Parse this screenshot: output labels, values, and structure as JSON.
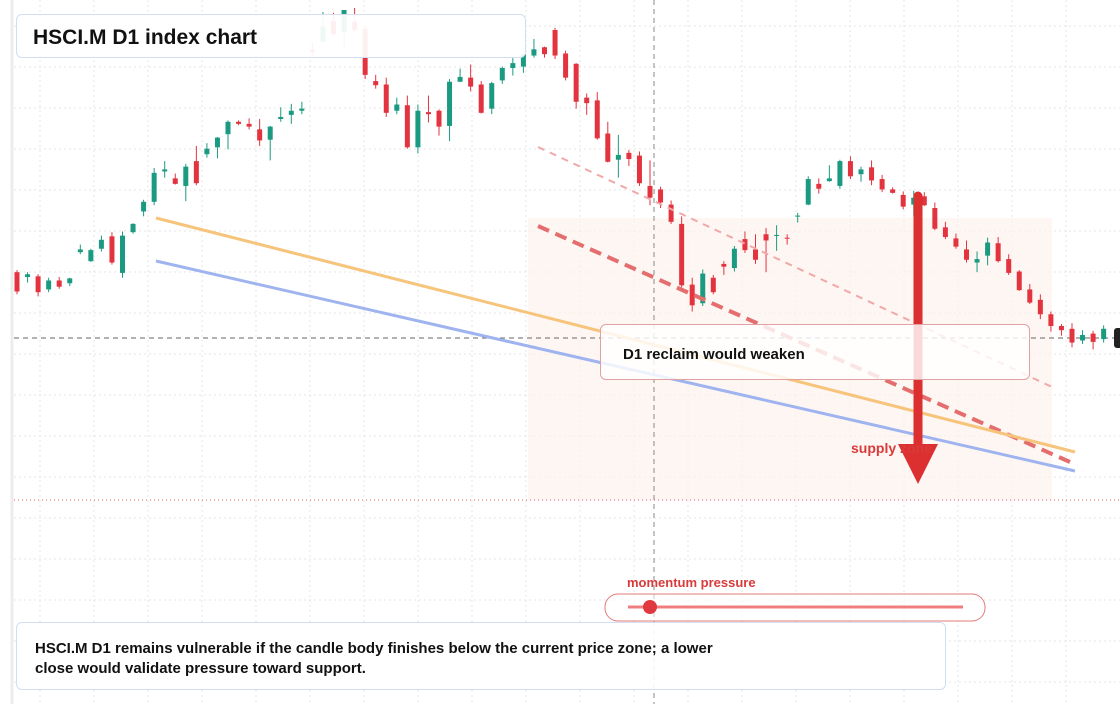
{
  "title": "HSCI.M D1 index chart",
  "callout": "D1 reclaim would weaken",
  "supply_label": "supply zone",
  "momentum_label": "momentum pressure",
  "note": "HSCI.M D1 remains vulnerable if the candle body finishes below the current price zone; a lower close would validate pressure toward support.",
  "colors": {
    "up": "#1a9a80",
    "down": "#e3333f",
    "trend_orange": "#f6c47a",
    "trend_blue": "#9fb4ef",
    "arrow": "#dc2f2f"
  },
  "chart_data": {
    "type": "candlestick",
    "title": "HSCI.M D1 index chart",
    "ylim": [
      0,
      100
    ],
    "candles": [
      {
        "o": 62,
        "h": 62.3,
        "l": 58.8,
        "c": 59.2
      },
      {
        "o": 61.3,
        "h": 62,
        "l": 60.5,
        "c": 61.7
      },
      {
        "o": 61.4,
        "h": 61.7,
        "l": 58.5,
        "c": 59.1
      },
      {
        "o": 59.5,
        "h": 61.2,
        "l": 59.1,
        "c": 60.8
      },
      {
        "o": 60.8,
        "h": 61.3,
        "l": 59.6,
        "c": 59.9
      },
      {
        "o": 60.4,
        "h": 61.2,
        "l": 60,
        "c": 61.1
      },
      {
        "o": 64.9,
        "h": 66,
        "l": 64.6,
        "c": 65.3
      },
      {
        "o": 63.6,
        "h": 65.4,
        "l": 63.5,
        "c": 65.2
      },
      {
        "o": 65.4,
        "h": 67.3,
        "l": 65,
        "c": 66.7
      },
      {
        "o": 67.2,
        "h": 67.8,
        "l": 63.1,
        "c": 63.4
      },
      {
        "o": 61.9,
        "h": 67.9,
        "l": 61.2,
        "c": 67.3
      },
      {
        "o": 67.8,
        "h": 69.1,
        "l": 67.6,
        "c": 69
      },
      {
        "o": 70.8,
        "h": 72.5,
        "l": 70.1,
        "c": 72.2
      },
      {
        "o": 72.2,
        "h": 77.1,
        "l": 71.7,
        "c": 76.4
      },
      {
        "o": 76.6,
        "h": 78.1,
        "l": 75.7,
        "c": 76.9
      },
      {
        "o": 75.6,
        "h": 76.3,
        "l": 74.7,
        "c": 74.8
      },
      {
        "o": 74.5,
        "h": 77.7,
        "l": 72.3,
        "c": 77.3
      },
      {
        "o": 78.1,
        "h": 80.3,
        "l": 74.6,
        "c": 74.9
      },
      {
        "o": 79.1,
        "h": 80.7,
        "l": 78.6,
        "c": 79.9
      },
      {
        "o": 80.1,
        "h": 81.6,
        "l": 78.5,
        "c": 81.5
      },
      {
        "o": 82,
        "h": 84,
        "l": 79.8,
        "c": 83.8
      },
      {
        "o": 83.8,
        "h": 84,
        "l": 83.3,
        "c": 83.5
      },
      {
        "o": 83.5,
        "h": 84.3,
        "l": 82.7,
        "c": 83.1
      },
      {
        "o": 82.7,
        "h": 84.2,
        "l": 80.3,
        "c": 81.1
      },
      {
        "o": 81.2,
        "h": 83.2,
        "l": 78.2,
        "c": 83.1
      },
      {
        "o": 84.2,
        "h": 85.9,
        "l": 83.8,
        "c": 84.5
      },
      {
        "o": 84.8,
        "h": 86.4,
        "l": 83.5,
        "c": 85.4
      },
      {
        "o": 85.4,
        "h": 86.7,
        "l": 84.9,
        "c": 85.7
      },
      {
        "o": 94.2,
        "h": 95.4,
        "l": 93.1,
        "c": 93.9
      },
      {
        "o": 95.4,
        "h": 99.7,
        "l": 95.4,
        "c": 97.6
      },
      {
        "o": 98.4,
        "h": 99.6,
        "l": 96.3,
        "c": 96.5
      },
      {
        "o": 96.8,
        "h": 100,
        "l": 94.2,
        "c": 100
      },
      {
        "o": 98.3,
        "h": 100.3,
        "l": 96.8,
        "c": 97.1
      },
      {
        "o": 97.3,
        "h": 97.7,
        "l": 90,
        "c": 90.6
      },
      {
        "o": 89.7,
        "h": 90.6,
        "l": 88.6,
        "c": 89.1
      },
      {
        "o": 89.2,
        "h": 90.2,
        "l": 84.5,
        "c": 85.1
      },
      {
        "o": 85.4,
        "h": 87.3,
        "l": 84.9,
        "c": 86.3
      },
      {
        "o": 86.2,
        "h": 87.6,
        "l": 79.9,
        "c": 80.1
      },
      {
        "o": 80.1,
        "h": 86.3,
        "l": 79.2,
        "c": 85.4
      },
      {
        "o": 85.2,
        "h": 87.6,
        "l": 83.7,
        "c": 84.9
      },
      {
        "o": 85.4,
        "h": 85.6,
        "l": 81.8,
        "c": 83.1
      },
      {
        "o": 83.2,
        "h": 90,
        "l": 81,
        "c": 89.6
      },
      {
        "o": 89.6,
        "h": 91.5,
        "l": 89.6,
        "c": 90.3
      },
      {
        "o": 90.2,
        "h": 92.1,
        "l": 88.2,
        "c": 88.9
      },
      {
        "o": 89.2,
        "h": 89.7,
        "l": 85,
        "c": 85.1
      },
      {
        "o": 85.7,
        "h": 89.6,
        "l": 84.9,
        "c": 89.4
      },
      {
        "o": 89.8,
        "h": 91.8,
        "l": 89.3,
        "c": 91.6
      },
      {
        "o": 91.6,
        "h": 93.3,
        "l": 90.5,
        "c": 92.3
      },
      {
        "o": 91.8,
        "h": 93.6,
        "l": 90.9,
        "c": 93.6
      },
      {
        "o": 93.4,
        "h": 95.8,
        "l": 93.1,
        "c": 94.3
      },
      {
        "o": 94.6,
        "h": 94.7,
        "l": 93.1,
        "c": 93.6
      },
      {
        "o": 97.1,
        "h": 97.4,
        "l": 92.9,
        "c": 93.4
      },
      {
        "o": 93.7,
        "h": 94.1,
        "l": 89.8,
        "c": 90.2
      },
      {
        "o": 92.2,
        "h": 92.3,
        "l": 85.7,
        "c": 86.7
      },
      {
        "o": 87.3,
        "h": 87.9,
        "l": 84.8,
        "c": 86.5
      },
      {
        "o": 86.9,
        "h": 88.1,
        "l": 81.2,
        "c": 81.4
      },
      {
        "o": 82.1,
        "h": 83.8,
        "l": 77.9,
        "c": 78
      },
      {
        "o": 78.3,
        "h": 81.9,
        "l": 75.7,
        "c": 79
      },
      {
        "o": 79.3,
        "h": 79.7,
        "l": 77.4,
        "c": 78.4
      },
      {
        "o": 78.9,
        "h": 79.5,
        "l": 74.5,
        "c": 74.9
      },
      {
        "o": 74.5,
        "h": 78.2,
        "l": 71.7,
        "c": 72.8
      },
      {
        "o": 74,
        "h": 74.4,
        "l": 71.3,
        "c": 72.1
      },
      {
        "o": 71.8,
        "h": 72.4,
        "l": 69,
        "c": 69.3
      },
      {
        "o": 69,
        "h": 70.1,
        "l": 59.8,
        "c": 60.1
      },
      {
        "o": 60.2,
        "h": 61.2,
        "l": 56.3,
        "c": 57.2
      },
      {
        "o": 57.5,
        "h": 62.4,
        "l": 57.1,
        "c": 61.8
      },
      {
        "o": 61.2,
        "h": 61.6,
        "l": 58.8,
        "c": 59.1
      },
      {
        "o": 63.2,
        "h": 63.6,
        "l": 61.6,
        "c": 62.8
      },
      {
        "o": 62.6,
        "h": 65.8,
        "l": 62.1,
        "c": 65.4
      },
      {
        "o": 66.8,
        "h": 67.9,
        "l": 64.8,
        "c": 65.2
      },
      {
        "o": 65.3,
        "h": 67.5,
        "l": 63.2,
        "c": 63.8
      },
      {
        "o": 67.5,
        "h": 68.4,
        "l": 62,
        "c": 66.6
      },
      {
        "o": 67.3,
        "h": 68.8,
        "l": 65.1,
        "c": 67.4
      },
      {
        "o": 67,
        "h": 67.5,
        "l": 66,
        "c": 66.9
      },
      {
        "o": 70.1,
        "h": 70.6,
        "l": 69.2,
        "c": 70.2
      },
      {
        "o": 71.8,
        "h": 75.9,
        "l": 71.7,
        "c": 75.5
      },
      {
        "o": 74.8,
        "h": 75.6,
        "l": 73.4,
        "c": 74.1
      },
      {
        "o": 75.2,
        "h": 77.5,
        "l": 75.1,
        "c": 75.6
      },
      {
        "o": 74.5,
        "h": 78.3,
        "l": 74.1,
        "c": 78.1
      },
      {
        "o": 78.1,
        "h": 78.8,
        "l": 75.5,
        "c": 75.9
      },
      {
        "o": 76.2,
        "h": 77.3,
        "l": 75.1,
        "c": 76.9
      },
      {
        "o": 77.2,
        "h": 78.2,
        "l": 74.6,
        "c": 75.3
      },
      {
        "o": 75.5,
        "h": 76.1,
        "l": 73.6,
        "c": 74
      },
      {
        "o": 74,
        "h": 74.3,
        "l": 73.4,
        "c": 73.5
      },
      {
        "o": 73.2,
        "h": 73.7,
        "l": 71.1,
        "c": 71.5
      },
      {
        "o": 71.8,
        "h": 73.8,
        "l": 70.1,
        "c": 72.8
      },
      {
        "o": 73,
        "h": 73.6,
        "l": 71.6,
        "c": 71.7
      },
      {
        "o": 71.3,
        "h": 72.1,
        "l": 68.1,
        "c": 68.3
      },
      {
        "o": 68.5,
        "h": 69.3,
        "l": 66.8,
        "c": 67.1
      },
      {
        "o": 66.9,
        "h": 67.6,
        "l": 65.4,
        "c": 65.7
      },
      {
        "o": 65.3,
        "h": 66.6,
        "l": 63.4,
        "c": 63.8
      },
      {
        "o": 63.4,
        "h": 65,
        "l": 62,
        "c": 63.9
      },
      {
        "o": 64.4,
        "h": 67,
        "l": 63,
        "c": 66.3
      },
      {
        "o": 66.2,
        "h": 67.1,
        "l": 63.4,
        "c": 63.6
      },
      {
        "o": 63.9,
        "h": 64.6,
        "l": 61.6,
        "c": 61.9
      },
      {
        "o": 62.1,
        "h": 62.3,
        "l": 59.3,
        "c": 59.4
      },
      {
        "o": 59.5,
        "h": 60.3,
        "l": 57.4,
        "c": 57.6
      },
      {
        "o": 58,
        "h": 58.8,
        "l": 55.2,
        "c": 55.9
      },
      {
        "o": 55.9,
        "h": 56.3,
        "l": 53.4,
        "c": 54.2
      },
      {
        "o": 54.2,
        "h": 54.5,
        "l": 52.8,
        "c": 53.6
      },
      {
        "o": 53.8,
        "h": 54.6,
        "l": 51.1,
        "c": 51.8
      },
      {
        "o": 52.1,
        "h": 53.6,
        "l": 51.6,
        "c": 52.9
      },
      {
        "o": 53.1,
        "h": 53.5,
        "l": 50.8,
        "c": 51.9
      },
      {
        "o": 52.3,
        "h": 54.3,
        "l": 51.8,
        "c": 53.8
      }
    ],
    "trendlines": [
      {
        "color": "orange",
        "from": [
          0,
          82.1
        ],
        "to": [
          101,
          58.8
        ]
      },
      {
        "color": "blue",
        "from": [
          0,
          77.8
        ],
        "to": [
          101,
          57.6
        ]
      }
    ],
    "resistance_channel": {
      "upper": [
        [
          44,
          94.2
        ],
        [
          102,
          62.9
        ]
      ],
      "lower": [
        [
          44,
          83.7
        ],
        [
          102,
          59.2
        ]
      ]
    },
    "current_price_line": 46.6,
    "dashed_level": 72.8
  }
}
